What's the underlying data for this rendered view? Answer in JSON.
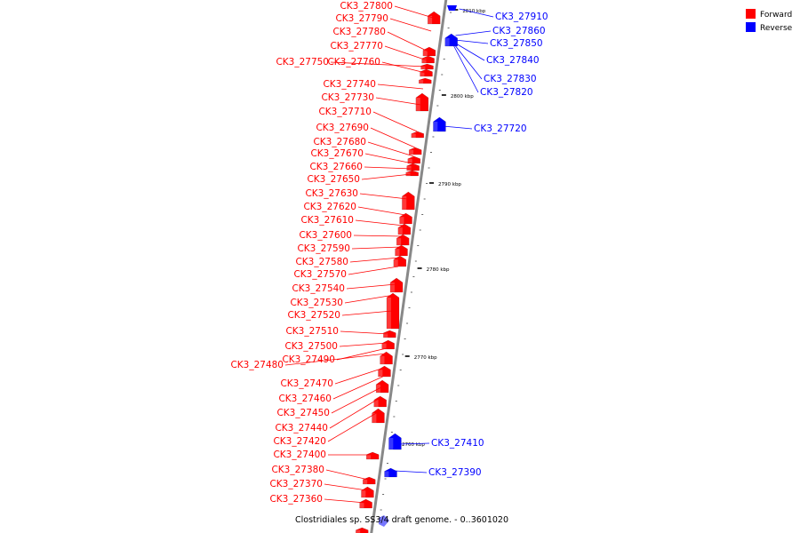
{
  "caption": "Clostridiales sp. SS3/4 draft genome. - 0..3601020",
  "legend": [
    {
      "label": "Forward",
      "color": "#ff0000"
    },
    {
      "label": "Reverse",
      "color": "#0000ff"
    }
  ],
  "colors": {
    "forward": "#ff0000",
    "reverse": "#0000ff",
    "axis": "#888888"
  },
  "ticks": [
    "2810 kbp",
    "2800 kbp",
    "2790 kbp",
    "2780 kbp",
    "2770 kbp",
    "2760 kbp"
  ],
  "forward_genes": [
    "CK3_27800",
    "CK3_27790",
    "CK3_27780",
    "CK3_27770",
    "CK3_27750",
    "CK3_27760",
    "CK3_27740",
    "CK3_27730",
    "CK3_27710",
    "CK3_27690",
    "CK3_27680",
    "CK3_27670",
    "CK3_27660",
    "CK3_27650",
    "CK3_27630",
    "CK3_27620",
    "CK3_27610",
    "CK3_27600",
    "CK3_27590",
    "CK3_27580",
    "CK3_27570",
    "CK3_27540",
    "CK3_27530",
    "CK3_27520",
    "CK3_27510",
    "CK3_27500",
    "CK3_27490",
    "CK3_27480",
    "CK3_27470",
    "CK3_27460",
    "CK3_27450",
    "CK3_27440",
    "CK3_27420",
    "CK3_27400",
    "CK3_27380",
    "CK3_27370",
    "CK3_27360"
  ],
  "reverse_genes": [
    "CK3_27910",
    "CK3_27860",
    "CK3_27850",
    "CK3_27840",
    "CK3_27830",
    "CK3_27820",
    "CK3_27720",
    "CK3_27410",
    "CK3_27390"
  ]
}
